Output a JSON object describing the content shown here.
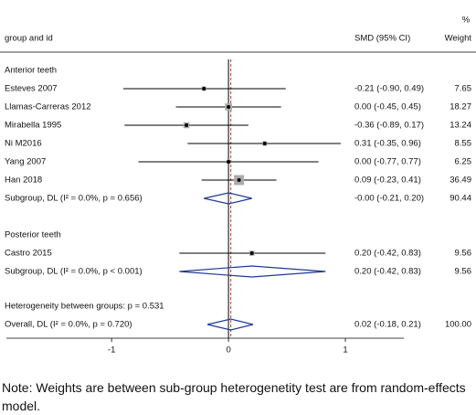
{
  "chart_data": {
    "type": "forest",
    "headers": {
      "label": "group and id",
      "effect": "SMD (95% CI)",
      "weight_top": "%",
      "weight": "Weight"
    },
    "xlim": [
      -1.9,
      1.5
    ],
    "xticks": [
      -1,
      0,
      1
    ],
    "null_line": 0,
    "groups": [
      {
        "name": "Anterior teeth",
        "studies": [
          {
            "name": "Esteves 2007",
            "values": [
              -0.21,
              -0.9,
              0.49
            ],
            "value_label": "-0.21 (-0.90, 0.49)",
            "weight": 7.65
          },
          {
            "name": "Llamas-Carreras 2012",
            "values": [
              0.0,
              -0.45,
              0.45
            ],
            "value_label": "0.00 (-0.45, 0.45)",
            "weight": 18.27
          },
          {
            "name": "Mirabella 1995",
            "values": [
              -0.36,
              -0.89,
              0.17
            ],
            "value_label": "-0.36 (-0.89, 0.17)",
            "weight": 13.24
          },
          {
            "name": "Ni M2016",
            "values": [
              0.31,
              -0.35,
              0.96
            ],
            "value_label": "0.31 (-0.35, 0.96)",
            "weight": 8.55
          },
          {
            "name": "Yang 2007",
            "values": [
              0.0,
              -0.77,
              0.77
            ],
            "value_label": "0.00 (-0.77, 0.77)",
            "weight": 6.25
          },
          {
            "name": "Han 2018",
            "values": [
              0.09,
              -0.23,
              0.41
            ],
            "value_label": "0.09 (-0.23, 0.41)",
            "weight": 36.49
          }
        ],
        "subtotal": {
          "name": "Subgroup, DL (I² = 0.0%, p = 0.656)",
          "values": [
            0,
            -0.21,
            0.2
          ],
          "value_label": "-0.00 (-0.21, 0.20)",
          "weight": 90.44
        }
      },
      {
        "name": "Posterior teeth",
        "studies": [
          {
            "name": "Castro 2015",
            "values": [
              0.2,
              -0.42,
              0.83
            ],
            "value_label": "0.20 (-0.42, 0.83)",
            "weight": 9.56
          }
        ],
        "subtotal": {
          "name": "Subgroup, DL (I² = 0.0%, p < 0.001)",
          "values": [
            0.2,
            -0.42,
            0.83
          ],
          "value_label": "0.20 (-0.42, 0.83)",
          "weight": 9.56
        }
      }
    ],
    "heterogeneity": "Heterogeneity between groups: p = 0.531",
    "overall": {
      "name": "Overall, DL (I² = 0.0%, p = 0.720)",
      "values": [
        0.02,
        -0.18,
        0.21
      ],
      "value_label": "0.02 (-0.18, 0.21)",
      "weight": 100,
      "weight_label": "100.00"
    },
    "note": "Note: Weights are between sub-group heterogenetity test are from random-effects model."
  }
}
